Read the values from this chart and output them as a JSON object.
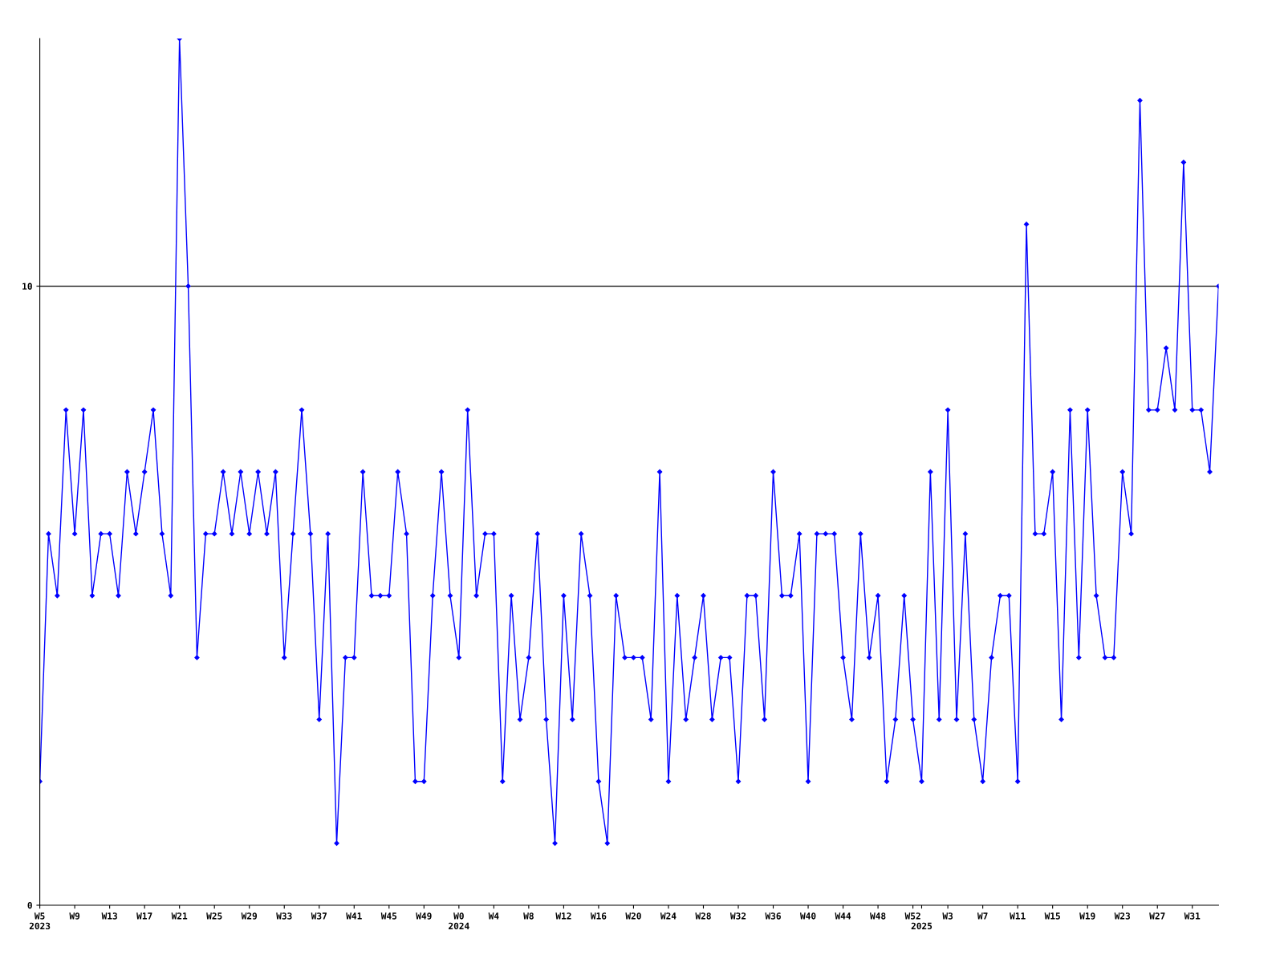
{
  "chart_data": {
    "type": "line",
    "categories": [
      "W5\n2023",
      null,
      null,
      null,
      "W9",
      null,
      null,
      null,
      "W13",
      null,
      null,
      null,
      "W17",
      null,
      null,
      null,
      "W21",
      null,
      null,
      null,
      "W25",
      null,
      null,
      null,
      "W29",
      null,
      null,
      null,
      "W33",
      null,
      null,
      null,
      "W37",
      null,
      null,
      null,
      "W41",
      null,
      null,
      null,
      "W45",
      null,
      null,
      null,
      "W49",
      null,
      null,
      null,
      "W0\n2024",
      null,
      null,
      null,
      "W4",
      null,
      null,
      null,
      "W8",
      null,
      null,
      null,
      "W12",
      null,
      null,
      null,
      "W16",
      null,
      null,
      null,
      "W20",
      null,
      null,
      null,
      "W24",
      null,
      null,
      null,
      "W28",
      null,
      null,
      null,
      "W32",
      null,
      null,
      null,
      "W36",
      null,
      null,
      null,
      "W40",
      null,
      null,
      null,
      "W44",
      null,
      null,
      null,
      "W48",
      null,
      null,
      null,
      "W52",
      "\n2025",
      null,
      null,
      "W3",
      null,
      null,
      null,
      "W7",
      null,
      null,
      null,
      "W11",
      null,
      null,
      null,
      "W15",
      null,
      null,
      null,
      "W19",
      null,
      null,
      null,
      "W23",
      null,
      null,
      null,
      "W27",
      null,
      null,
      null,
      "W31",
      null,
      null,
      null
    ],
    "series": [
      {
        "color": "#0000ff",
        "values": [
          2,
          6,
          5,
          8,
          6,
          8,
          5,
          6,
          6,
          5,
          7,
          6,
          7,
          8,
          6,
          5,
          14,
          10,
          4,
          6,
          6,
          7,
          6,
          7,
          6,
          7,
          6,
          7,
          4,
          6,
          8,
          6,
          3,
          6,
          1,
          4,
          4,
          7,
          5,
          5,
          5,
          7,
          6,
          2,
          2,
          5,
          7,
          5,
          4,
          8,
          5,
          6,
          6,
          2,
          5,
          3,
          4,
          6,
          3,
          1,
          5,
          3,
          6,
          5,
          2,
          1,
          5,
          4,
          4,
          4,
          3,
          7,
          2,
          5,
          3,
          4,
          5,
          3,
          4,
          4,
          2,
          5,
          5,
          3,
          7,
          5,
          5,
          6,
          2,
          6,
          6,
          6,
          4,
          3,
          6,
          4,
          5,
          2,
          3,
          5,
          3,
          2,
          7,
          3,
          8,
          3,
          6,
          3,
          2,
          4,
          5,
          5,
          2,
          11,
          6,
          6,
          7,
          3,
          8,
          4,
          8,
          5,
          4,
          4,
          7,
          6,
          13,
          8,
          8,
          9,
          8,
          12,
          8,
          8,
          7,
          10
        ]
      }
    ],
    "ylim": [
      0,
      14
    ],
    "yticks": [
      0,
      10
    ],
    "ref_lines": [
      {
        "axis": "y",
        "value": 10,
        "color": "#000000"
      }
    ],
    "marker": "diamond",
    "grid": false,
    "legend": false
  }
}
